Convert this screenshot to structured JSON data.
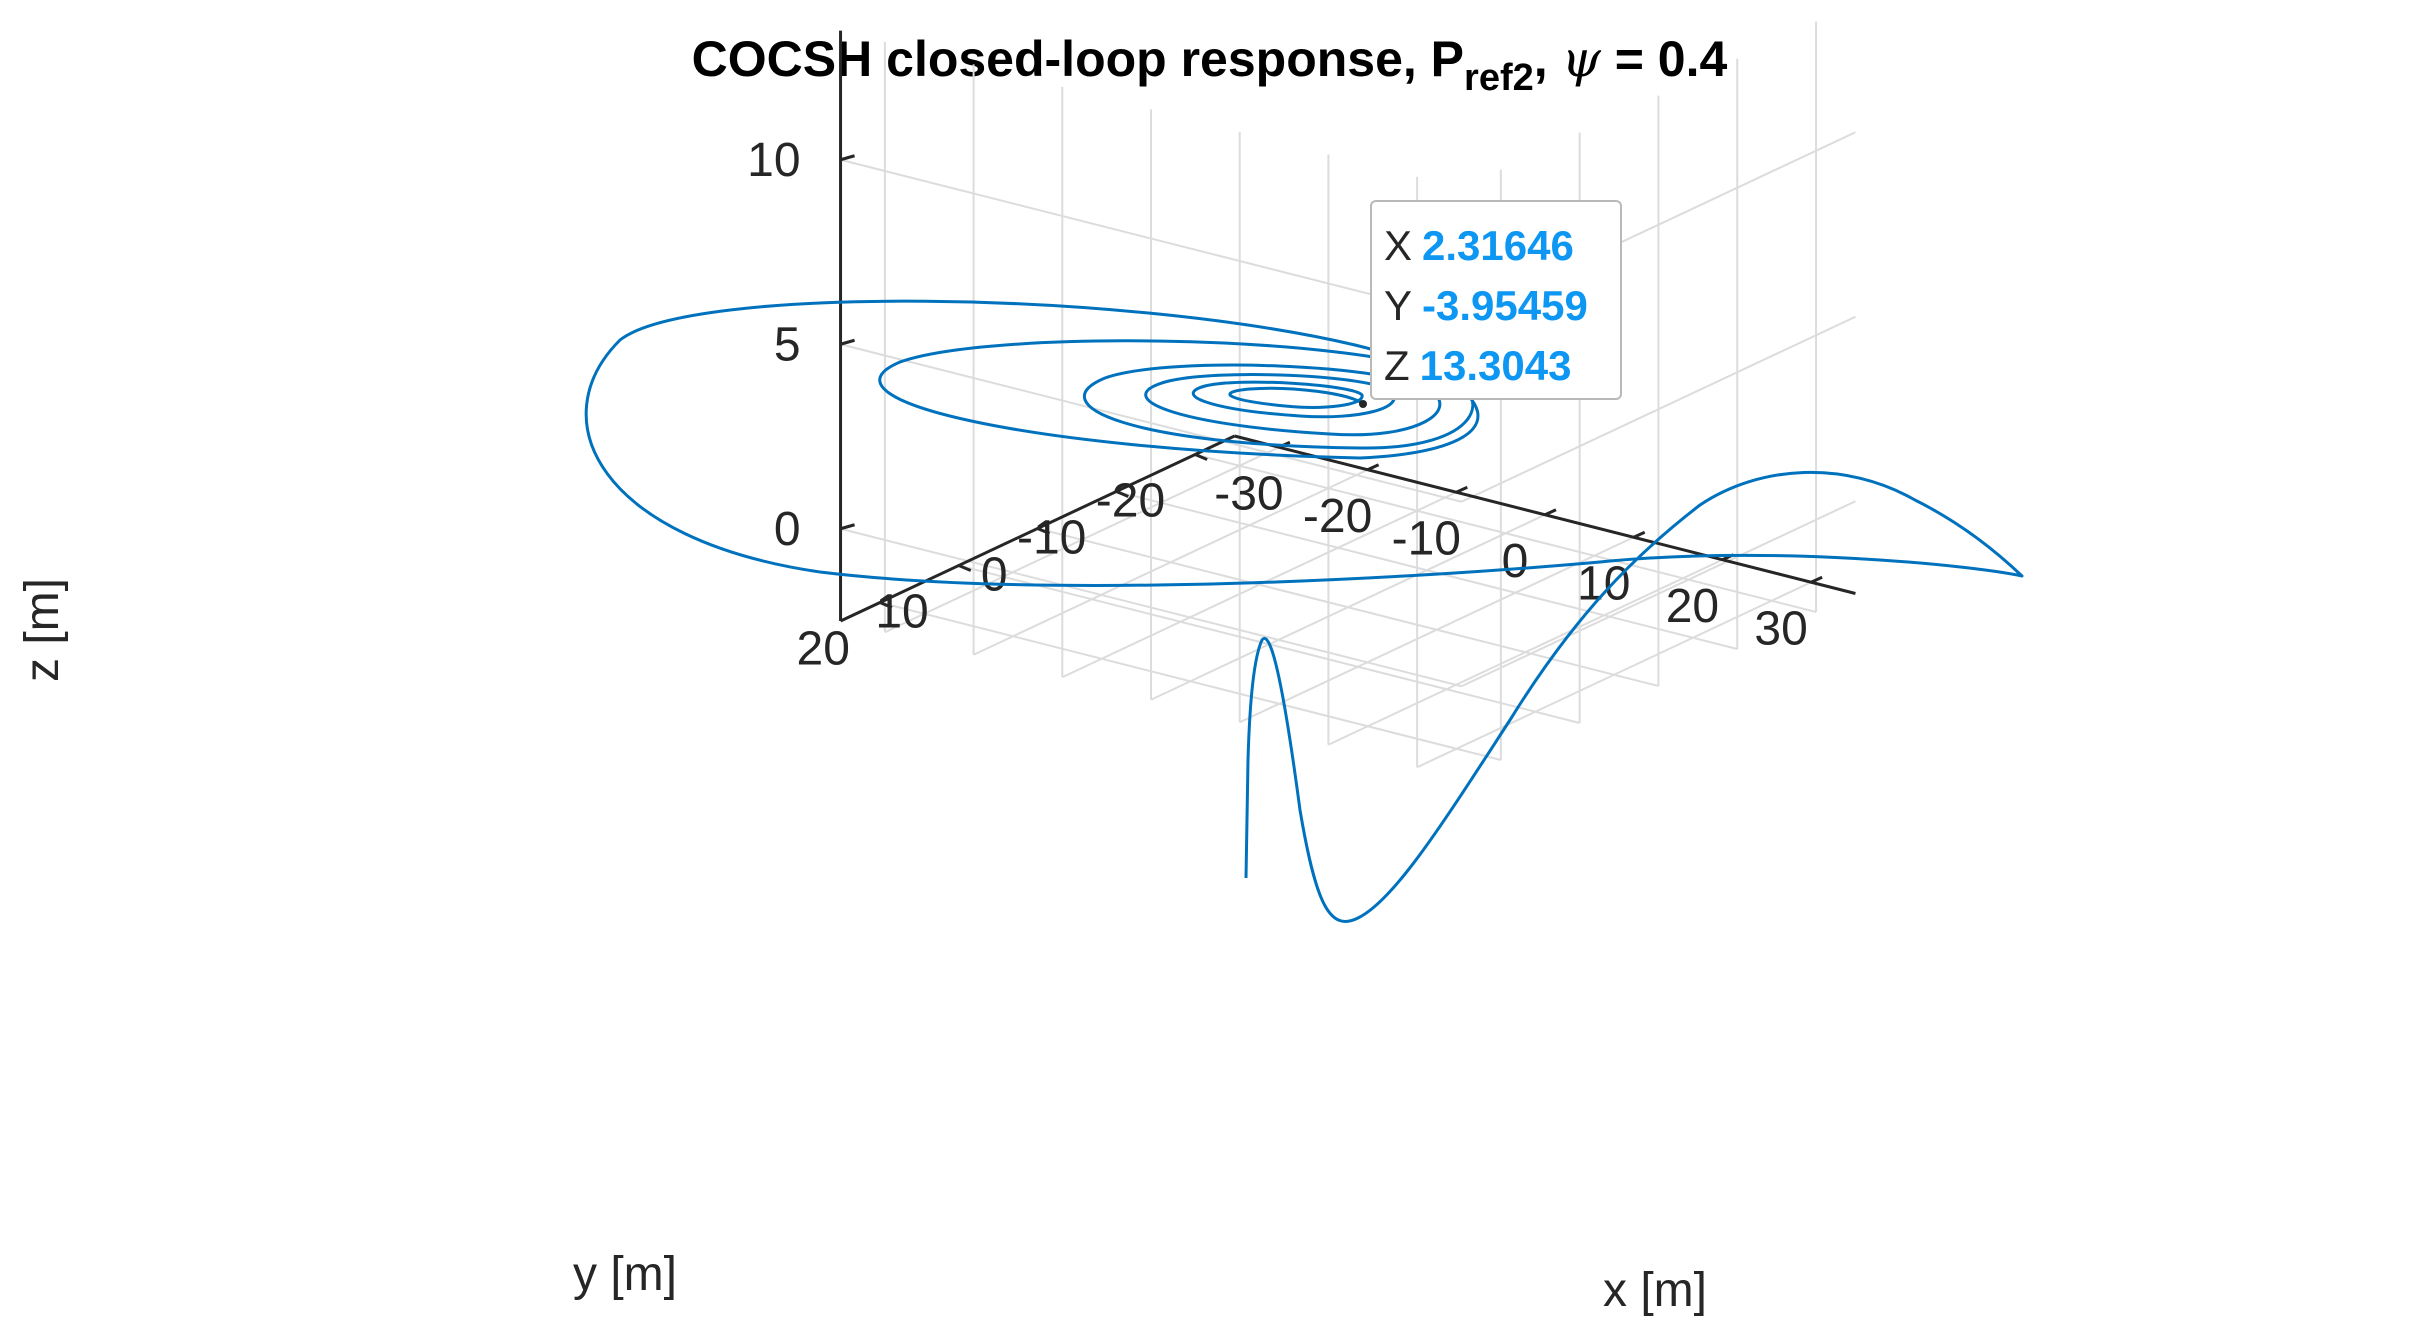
{
  "title": {
    "main": "COCSH closed-loop response, P",
    "subscript": "ref2",
    "comma": ",",
    "symbol": "ψ",
    "value": "= 0.4"
  },
  "colors": {
    "line": "#0072bd",
    "grid": "#dcdcdc",
    "axis": "#262626",
    "datatip_value": "#0d96f2"
  },
  "chart_data": {
    "type": "line",
    "projection": "3d",
    "title": "COCSH closed-loop response, P_ref2, ψ = 0.4",
    "xlabel": "x [m]",
    "ylabel": "y [m]",
    "zlabel": "z [m]",
    "xlim": [
      -35,
      35
    ],
    "ylim": [
      -25,
      25
    ],
    "zlim": [
      -2.5,
      13.5
    ],
    "xticks": [
      -30,
      -20,
      -10,
      0,
      10,
      20,
      30
    ],
    "yticks": [
      -20,
      -10,
      0,
      10,
      20
    ],
    "zticks": [
      0,
      5,
      10
    ],
    "xtick_labels": [
      "-30",
      "-20",
      "-10",
      "0",
      "10",
      "20",
      "30"
    ],
    "ytick_labels": [
      "-20",
      "-10",
      "0",
      "10",
      "20"
    ],
    "ztick_labels": [
      "0",
      "5",
      "10"
    ],
    "grid": true,
    "series": [
      {
        "name": "trajectory",
        "description": "spiral descending-radius trajectory converging to hover point"
      }
    ],
    "datatip": {
      "x_label": "X",
      "x_value": "2.31646",
      "y_label": "Y",
      "y_value": "-3.95459",
      "z_label": "Z",
      "z_value": "13.3043"
    }
  }
}
